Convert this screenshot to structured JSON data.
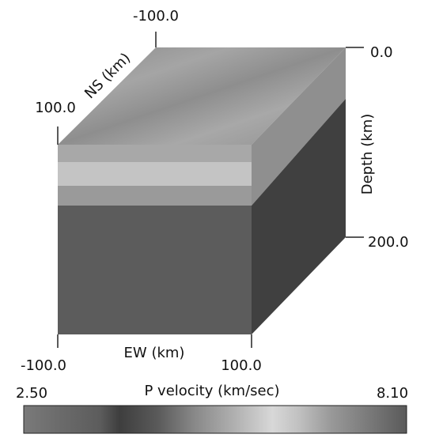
{
  "axes": {
    "ns": {
      "label": "NS (km)",
      "start": "-100.0",
      "end": "100.0"
    },
    "ew": {
      "label": "EW (km)",
      "start": "-100.0",
      "end": "100.0"
    },
    "depth": {
      "label": "Depth (km)",
      "start": "0.0",
      "end": "200.0"
    }
  },
  "colorbar": {
    "label": "P velocity (km/sec)",
    "min": "2.50",
    "max": "8.10"
  }
}
